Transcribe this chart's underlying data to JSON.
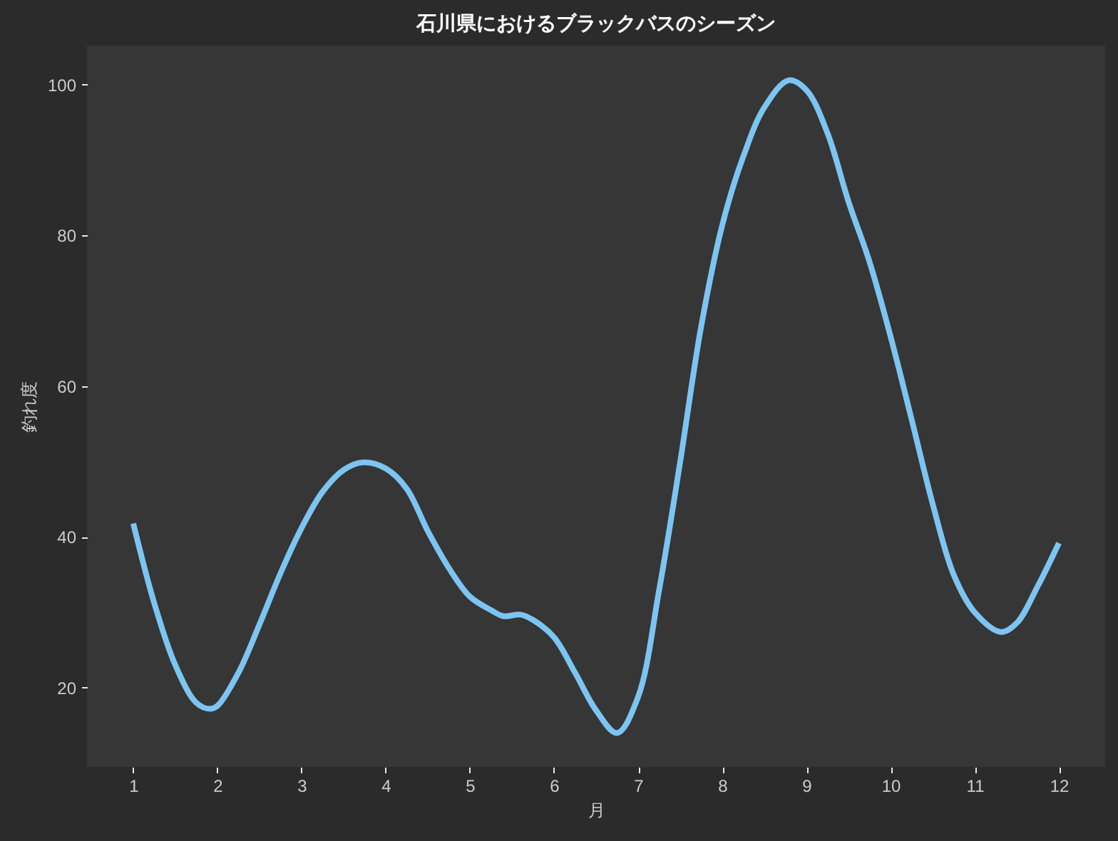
{
  "chart_data": {
    "type": "line",
    "title": "石川県におけるブラックバスのシーズン",
    "xlabel": "月",
    "ylabel": "釣れ度",
    "x": [
      1.0,
      1.25,
      1.5,
      1.75,
      1.91,
      2.0,
      2.25,
      2.5,
      2.75,
      3.0,
      3.25,
      3.5,
      3.73,
      4.0,
      4.25,
      4.5,
      4.75,
      5.0,
      5.25,
      5.4,
      5.6,
      5.75,
      6.0,
      6.25,
      6.5,
      6.75,
      7.0,
      7.25,
      7.5,
      7.75,
      8.0,
      8.25,
      8.5,
      8.79,
      9.0,
      9.25,
      9.5,
      9.75,
      10.0,
      10.25,
      10.5,
      10.75,
      11.0,
      11.31,
      11.5,
      11.75,
      12.0
    ],
    "series": [
      {
        "color": "#7cc5f2",
        "values": [
          41.8,
          31.2,
          23.0,
          18.0,
          17.2,
          17.6,
          22.0,
          28.4,
          35.2,
          41.2,
          46.0,
          48.9,
          49.9,
          49.1,
          46.4,
          40.8,
          35.9,
          32.1,
          30.3,
          29.5,
          29.7,
          29.0,
          26.7,
          22.0,
          17.0,
          14.0,
          18.8,
          33.0,
          50.0,
          68.0,
          81.4,
          90.5,
          97.0,
          100.6,
          99.3,
          93.6,
          84.5,
          76.5,
          66.6,
          55.6,
          44.4,
          35.0,
          30.0,
          27.4,
          28.6,
          33.5,
          39.2
        ]
      }
    ],
    "xlim": [
      0.45,
      12.55
    ],
    "xticks": [
      1,
      2,
      3,
      4,
      5,
      6,
      7,
      8,
      9,
      10,
      11,
      12
    ],
    "ylim": [
      9.5,
      105.2
    ],
    "yticks": [
      20,
      40,
      60,
      80,
      100
    ],
    "grid": false,
    "line_style": "solid"
  }
}
